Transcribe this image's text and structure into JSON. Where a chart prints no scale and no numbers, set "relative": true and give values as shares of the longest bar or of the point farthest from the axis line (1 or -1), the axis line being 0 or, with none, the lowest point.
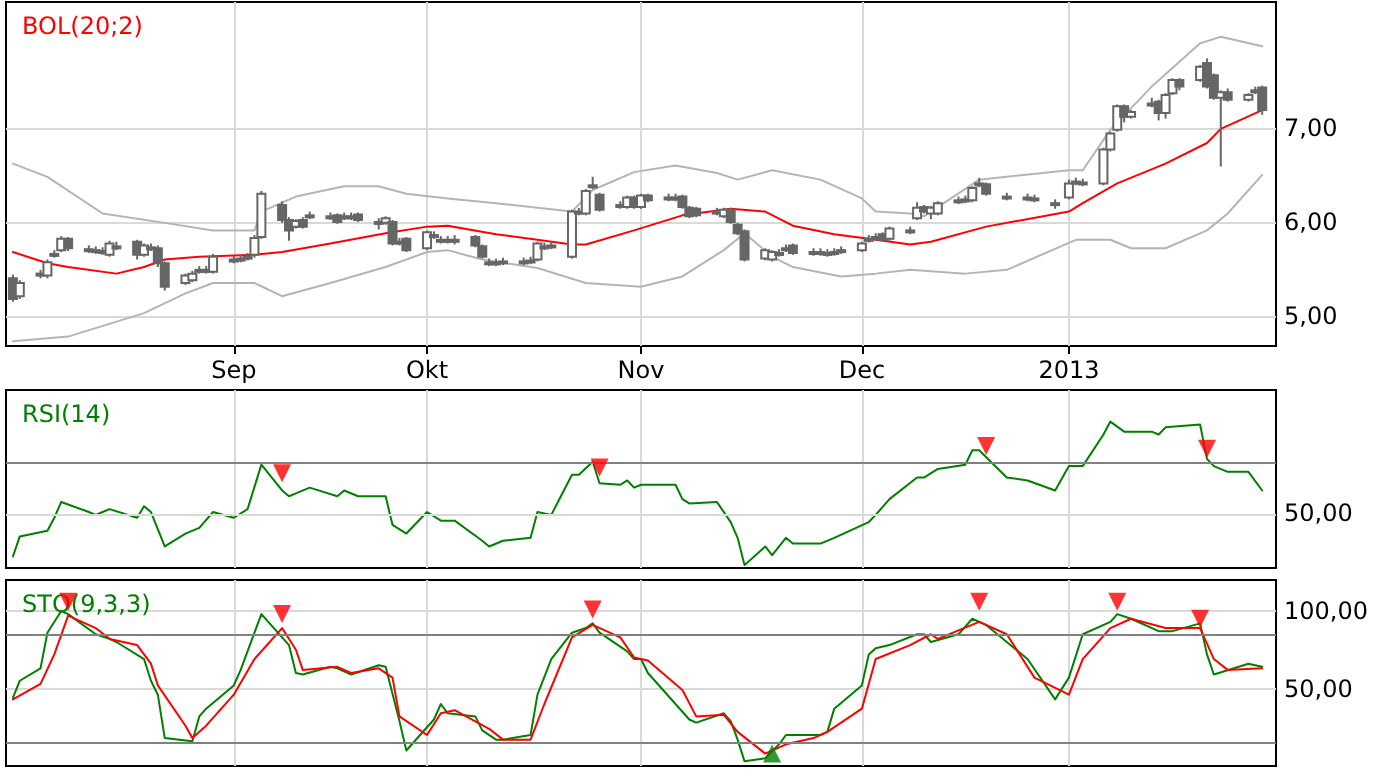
{
  "chart_data": [
    {
      "type": "candlestick",
      "title": "BOL(20;2)",
      "xlim": [
        "2012-08-01",
        "2013-02-01"
      ],
      "xticks": [
        {
          "value": "2012-09-03",
          "label": "Sep"
        },
        {
          "value": "2012-10-01",
          "label": "Okt"
        },
        {
          "value": "2012-11-01",
          "label": "Nov"
        },
        {
          "value": "2012-12-03",
          "label": "Dec"
        },
        {
          "value": "2013-01-02",
          "label": "2013"
        }
      ],
      "ylim": [
        4.68,
        8.34
      ],
      "yticks": [
        {
          "value": 5,
          "label": "5,00"
        },
        {
          "value": 6,
          "label": "6,00"
        },
        {
          "value": 7,
          "label": "7,00"
        }
      ],
      "grid": true,
      "series": [
        {
          "color": "#666666",
          "x": [
            "2012-08-02",
            "2012-08-03",
            "2012-08-06",
            "2012-08-07",
            "2012-08-08",
            "2012-08-09",
            "2012-08-10",
            "2012-08-13",
            "2012-08-14",
            "2012-08-15",
            "2012-08-16",
            "2012-08-17",
            "2012-08-20",
            "2012-08-21",
            "2012-08-22",
            "2012-08-23",
            "2012-08-24",
            "2012-08-27",
            "2012-08-28",
            "2012-08-29",
            "2012-08-30",
            "2012-08-31",
            "2012-09-03",
            "2012-09-04",
            "2012-09-05",
            "2012-09-06",
            "2012-09-07",
            "2012-09-10",
            "2012-09-11",
            "2012-09-12",
            "2012-09-13",
            "2012-09-14",
            "2012-09-17",
            "2012-09-18",
            "2012-09-19",
            "2012-09-20",
            "2012-09-21",
            "2012-09-24",
            "2012-09-25",
            "2012-09-26",
            "2012-09-27",
            "2012-09-28",
            "2012-10-01",
            "2012-10-02",
            "2012-10-03",
            "2012-10-04",
            "2012-10-05",
            "2012-10-08",
            "2012-10-09",
            "2012-10-10",
            "2012-10-11",
            "2012-10-12",
            "2012-10-15",
            "2012-10-16",
            "2012-10-17",
            "2012-10-18",
            "2012-10-19",
            "2012-10-22",
            "2012-10-23",
            "2012-10-24",
            "2012-10-25",
            "2012-10-26",
            "2012-10-29",
            "2012-10-30",
            "2012-10-31",
            "2012-11-01",
            "2012-11-02",
            "2012-11-05",
            "2012-11-06",
            "2012-11-07",
            "2012-11-08",
            "2012-11-09",
            "2012-11-12",
            "2012-11-13",
            "2012-11-14",
            "2012-11-15",
            "2012-11-16",
            "2012-11-19",
            "2012-11-20",
            "2012-11-21",
            "2012-11-22",
            "2012-11-23",
            "2012-11-26",
            "2012-11-27",
            "2012-11-28",
            "2012-11-29",
            "2012-11-30",
            "2012-12-03",
            "2012-12-04",
            "2012-12-05",
            "2012-12-06",
            "2012-12-07",
            "2012-12-10",
            "2012-12-11",
            "2012-12-12",
            "2012-12-13",
            "2012-12-14",
            "2012-12-17",
            "2012-12-18",
            "2012-12-19",
            "2012-12-20",
            "2012-12-21",
            "2012-12-24",
            "2012-12-27",
            "2012-12-28",
            "2012-12-31",
            "2013-01-02",
            "2013-01-03",
            "2013-01-04",
            "2013-01-07",
            "2013-01-08",
            "2013-01-09",
            "2013-01-10",
            "2013-01-11",
            "2013-01-14",
            "2013-01-15",
            "2013-01-16",
            "2013-01-17",
            "2013-01-18",
            "2013-01-21",
            "2013-01-22",
            "2013-01-23",
            "2013-01-24",
            "2013-01-25",
            "2013-01-28",
            "2013-01-29",
            "2013-01-30"
          ],
          "ohlc": [
            [
              5.4,
              5.44,
              5.15,
              5.18
            ],
            [
              5.21,
              5.38,
              5.18,
              5.35
            ],
            [
              5.44,
              5.49,
              5.4,
              5.45
            ],
            [
              5.43,
              5.6,
              5.4,
              5.57
            ],
            [
              5.65,
              5.7,
              5.62,
              5.66
            ],
            [
              5.7,
              5.85,
              5.68,
              5.82
            ],
            [
              5.82,
              5.84,
              5.69,
              5.72
            ],
            [
              5.71,
              5.75,
              5.67,
              5.71
            ],
            [
              5.7,
              5.74,
              5.66,
              5.7
            ],
            [
              5.69,
              5.73,
              5.65,
              5.69
            ],
            [
              5.65,
              5.8,
              5.63,
              5.77
            ],
            [
              5.74,
              5.79,
              5.7,
              5.74
            ],
            [
              5.79,
              5.81,
              5.6,
              5.65
            ],
            [
              5.65,
              5.77,
              5.63,
              5.75
            ],
            [
              5.73,
              5.77,
              5.69,
              5.73
            ],
            [
              5.72,
              5.75,
              5.52,
              5.56
            ],
            [
              5.56,
              5.58,
              5.27,
              5.31
            ],
            [
              5.35,
              5.45,
              5.33,
              5.43
            ],
            [
              5.38,
              5.48,
              5.36,
              5.45
            ],
            [
              5.49,
              5.53,
              5.45,
              5.49
            ],
            [
              5.49,
              5.53,
              5.45,
              5.49
            ],
            [
              5.47,
              5.66,
              5.45,
              5.63
            ],
            [
              5.6,
              5.64,
              5.56,
              5.6
            ],
            [
              5.61,
              5.65,
              5.57,
              5.61
            ],
            [
              5.63,
              5.67,
              5.59,
              5.63
            ],
            [
              5.65,
              5.86,
              5.62,
              5.83
            ],
            [
              5.84,
              6.33,
              5.82,
              6.3
            ],
            [
              6.18,
              6.22,
              5.99,
              6.02
            ],
            [
              6.02,
              6.05,
              5.8,
              5.91
            ],
            [
              5.95,
              6.03,
              5.93,
              6.01
            ],
            [
              6.02,
              6.05,
              5.93,
              5.95
            ],
            [
              6.07,
              6.11,
              6.03,
              6.07
            ],
            [
              6.06,
              6.1,
              6.02,
              6.06
            ],
            [
              6.07,
              6.09,
              5.98,
              6.0
            ],
            [
              6.06,
              6.1,
              6.02,
              6.06
            ],
            [
              6.06,
              6.1,
              6.02,
              6.06
            ],
            [
              6.08,
              6.1,
              6.0,
              6.02
            ],
            [
              6.0,
              6.04,
              5.92,
              6.0
            ],
            [
              5.99,
              6.06,
              5.97,
              6.04
            ],
            [
              6.0,
              6.02,
              5.75,
              5.77
            ],
            [
              5.79,
              5.83,
              5.75,
              5.79
            ],
            [
              5.82,
              5.84,
              5.68,
              5.7
            ],
            [
              5.72,
              5.91,
              5.7,
              5.89
            ],
            [
              5.86,
              5.9,
              5.82,
              5.86
            ],
            [
              5.81,
              5.85,
              5.77,
              5.81
            ],
            [
              5.81,
              5.85,
              5.77,
              5.81
            ],
            [
              5.8,
              5.86,
              5.76,
              5.81
            ],
            [
              5.84,
              5.86,
              5.73,
              5.75
            ],
            [
              5.74,
              5.76,
              5.61,
              5.63
            ],
            [
              5.57,
              5.61,
              5.53,
              5.57
            ],
            [
              5.57,
              5.61,
              5.53,
              5.57
            ],
            [
              5.58,
              5.62,
              5.54,
              5.58
            ],
            [
              5.58,
              5.62,
              5.54,
              5.58
            ],
            [
              5.59,
              5.63,
              5.55,
              5.59
            ],
            [
              5.6,
              5.79,
              5.58,
              5.77
            ],
            [
              5.74,
              5.78,
              5.7,
              5.74
            ],
            [
              5.75,
              5.79,
              5.71,
              5.75
            ],
            [
              5.63,
              6.13,
              5.61,
              6.11
            ],
            [
              6.11,
              6.15,
              6.07,
              6.11
            ],
            [
              6.09,
              6.35,
              6.07,
              6.33
            ],
            [
              6.39,
              6.48,
              6.35,
              6.39
            ],
            [
              6.29,
              6.31,
              6.11,
              6.13
            ],
            [
              6.18,
              6.22,
              6.14,
              6.18
            ],
            [
              6.16,
              6.28,
              6.14,
              6.26
            ],
            [
              6.26,
              6.28,
              6.14,
              6.16
            ],
            [
              6.16,
              6.3,
              6.14,
              6.28
            ],
            [
              6.28,
              6.3,
              6.21,
              6.23
            ],
            [
              6.26,
              6.3,
              6.22,
              6.26
            ],
            [
              6.26,
              6.3,
              6.22,
              6.26
            ],
            [
              6.27,
              6.29,
              6.14,
              6.16
            ],
            [
              6.15,
              6.17,
              6.04,
              6.06
            ],
            [
              6.14,
              6.16,
              6.05,
              6.07
            ],
            [
              6.11,
              6.15,
              6.07,
              6.11
            ],
            [
              6.06,
              6.15,
              6.04,
              6.13
            ],
            [
              6.13,
              6.15,
              5.98,
              6.0
            ],
            [
              5.97,
              5.99,
              5.86,
              5.88
            ],
            [
              5.9,
              5.92,
              5.58,
              5.6
            ],
            [
              5.61,
              5.72,
              5.59,
              5.7
            ],
            [
              5.6,
              5.7,
              5.58,
              5.68
            ],
            [
              5.67,
              5.71,
              5.63,
              5.67
            ],
            [
              5.72,
              5.76,
              5.68,
              5.72
            ],
            [
              5.75,
              5.77,
              5.65,
              5.67
            ],
            [
              5.68,
              5.72,
              5.64,
              5.68
            ],
            [
              5.68,
              5.72,
              5.64,
              5.68
            ],
            [
              5.67,
              5.71,
              5.63,
              5.67
            ],
            [
              5.68,
              5.72,
              5.64,
              5.68
            ],
            [
              5.7,
              5.74,
              5.66,
              5.7
            ],
            [
              5.7,
              5.79,
              5.68,
              5.77
            ],
            [
              5.82,
              5.86,
              5.78,
              5.82
            ],
            [
              5.84,
              5.88,
              5.8,
              5.84
            ],
            [
              5.87,
              5.89,
              5.79,
              5.81
            ],
            [
              5.82,
              5.95,
              5.8,
              5.93
            ],
            [
              5.91,
              5.95,
              5.87,
              5.91
            ],
            [
              6.04,
              6.21,
              6.02,
              6.15
            ],
            [
              6.16,
              6.18,
              6.09,
              6.11
            ],
            [
              6.09,
              6.17,
              6.03,
              6.15
            ],
            [
              6.09,
              6.22,
              6.07,
              6.2
            ],
            [
              6.23,
              6.27,
              6.19,
              6.23
            ],
            [
              6.24,
              6.28,
              6.2,
              6.24
            ],
            [
              6.23,
              6.38,
              6.21,
              6.36
            ],
            [
              6.41,
              6.47,
              6.37,
              6.41
            ],
            [
              6.4,
              6.42,
              6.28,
              6.3
            ],
            [
              6.27,
              6.31,
              6.23,
              6.27
            ],
            [
              6.26,
              6.3,
              6.22,
              6.26
            ],
            [
              6.25,
              6.29,
              6.21,
              6.25
            ],
            [
              6.2,
              6.24,
              6.14,
              6.2
            ],
            [
              6.26,
              6.45,
              6.24,
              6.41
            ],
            [
              6.43,
              6.47,
              6.39,
              6.43
            ],
            [
              6.42,
              6.46,
              6.38,
              6.42
            ],
            [
              6.41,
              6.79,
              6.39,
              6.77
            ],
            [
              6.77,
              6.96,
              6.75,
              6.94
            ],
            [
              6.98,
              7.25,
              6.96,
              7.23
            ],
            [
              7.23,
              7.25,
              7.06,
              7.12
            ],
            [
              7.12,
              7.19,
              7.1,
              7.17
            ],
            [
              7.26,
              7.32,
              7.22,
              7.26
            ],
            [
              7.28,
              7.3,
              7.08,
              7.16
            ],
            [
              7.16,
              7.37,
              7.1,
              7.35
            ],
            [
              7.37,
              7.53,
              7.35,
              7.51
            ],
            [
              7.51,
              7.53,
              7.4,
              7.44
            ],
            [
              7.51,
              7.67,
              7.49,
              7.65
            ],
            [
              7.69,
              7.74,
              7.42,
              7.44
            ],
            [
              7.56,
              7.58,
              7.3,
              7.32
            ],
            [
              7.32,
              7.4,
              6.59,
              7.38
            ],
            [
              7.38,
              7.42,
              7.28,
              7.3
            ],
            [
              7.3,
              7.37,
              7.28,
              7.35
            ],
            [
              7.4,
              7.44,
              7.36,
              7.4
            ],
            [
              7.43,
              7.45,
              7.14,
              7.19
            ]
          ]
        },
        {
          "type": "line",
          "color": "#b4b4b4",
          "x": [
            "2012-08-02",
            "2012-08-07",
            "2012-08-15",
            "2012-08-24",
            "2012-08-31",
            "2012-09-06",
            "2012-09-07",
            "2012-09-12",
            "2012-09-19",
            "2012-09-24",
            "2012-09-28",
            "2012-10-04",
            "2012-10-11",
            "2012-10-22",
            "2012-10-25",
            "2012-10-31",
            "2012-11-06",
            "2012-11-12",
            "2012-11-15",
            "2012-11-20",
            "2012-11-27",
            "2012-12-03",
            "2012-12-05",
            "2012-12-10",
            "2012-12-12",
            "2012-12-20",
            "2013-01-02",
            "2013-01-04",
            "2013-01-08",
            "2013-01-14",
            "2013-01-21",
            "2013-01-24",
            "2013-01-30"
          ],
          "values": [
            6.62,
            6.48,
            6.09,
            5.99,
            5.91,
            5.91,
            6.11,
            6.27,
            6.38,
            6.38,
            6.3,
            6.25,
            6.2,
            6.11,
            6.34,
            6.53,
            6.6,
            6.52,
            6.45,
            6.55,
            6.45,
            6.25,
            6.11,
            6.09,
            6.06,
            6.45,
            6.55,
            6.55,
            6.98,
            7.44,
            7.9,
            7.97,
            7.87
          ]
        },
        {
          "type": "line",
          "color": "#ff0000",
          "x": [
            "2012-08-02",
            "2012-08-07",
            "2012-08-10",
            "2012-08-17",
            "2012-08-21",
            "2012-08-24",
            "2012-08-29",
            "2012-09-06",
            "2012-09-10",
            "2012-09-17",
            "2012-09-25",
            "2012-10-01",
            "2012-10-04",
            "2012-10-11",
            "2012-10-22",
            "2012-10-24",
            "2012-10-31",
            "2012-11-07",
            "2012-11-14",
            "2012-11-19",
            "2012-11-23",
            "2012-11-29",
            "2012-12-04",
            "2012-12-10",
            "2012-12-13",
            "2012-12-21",
            "2013-01-02",
            "2013-01-04",
            "2013-01-09",
            "2013-01-16",
            "2013-01-22",
            "2013-01-24",
            "2013-01-30"
          ],
          "values": [
            5.68,
            5.56,
            5.52,
            5.45,
            5.52,
            5.6,
            5.63,
            5.65,
            5.68,
            5.77,
            5.88,
            5.95,
            5.96,
            5.87,
            5.76,
            5.76,
            5.91,
            6.07,
            6.14,
            6.11,
            5.96,
            5.87,
            5.82,
            5.76,
            5.79,
            5.95,
            6.11,
            6.2,
            6.41,
            6.62,
            6.84,
            6.99,
            7.19
          ]
        },
        {
          "type": "line",
          "color": "#b4b4b4",
          "x": [
            "2012-08-02",
            "2012-08-10",
            "2012-08-21",
            "2012-08-27",
            "2012-08-31",
            "2012-09-06",
            "2012-09-10",
            "2012-09-17",
            "2012-09-25",
            "2012-10-01",
            "2012-10-04",
            "2012-10-09",
            "2012-10-17",
            "2012-10-24",
            "2012-11-01",
            "2012-11-07",
            "2012-11-13",
            "2012-11-16",
            "2012-11-20",
            "2012-11-23",
            "2012-11-30",
            "2012-12-05",
            "2012-12-10",
            "2012-12-18",
            "2012-12-24",
            "2013-01-03",
            "2013-01-08",
            "2013-01-11",
            "2013-01-16",
            "2013-01-22",
            "2013-01-25",
            "2013-01-30"
          ],
          "values": [
            4.73,
            4.78,
            5.03,
            5.24,
            5.35,
            5.35,
            5.21,
            5.35,
            5.52,
            5.68,
            5.7,
            5.6,
            5.51,
            5.35,
            5.31,
            5.42,
            5.7,
            5.88,
            5.63,
            5.52,
            5.42,
            5.45,
            5.49,
            5.45,
            5.49,
            5.81,
            5.81,
            5.72,
            5.72,
            5.91,
            6.09,
            6.5
          ]
        }
      ]
    },
    {
      "type": "line",
      "title": "RSI(14)",
      "relative": true,
      "xlim": [
        "2012-08-01",
        "2013-02-01"
      ],
      "xticks": [
        {
          "value": "2012-09-03",
          "label": null
        },
        {
          "value": "2012-10-01",
          "label": null
        },
        {
          "value": "2012-11-01",
          "label": null
        },
        {
          "value": "2012-12-03",
          "label": null
        },
        {
          "value": "2013-01-02",
          "label": null
        }
      ],
      "grid": "x",
      "tick_labels": "y",
      "ref_lines": [
        {
          "axis": "y",
          "value": 0.72,
          "color": "#808080"
        },
        {
          "axis": "y",
          "value": 0.35,
          "color": "#d9d9d9"
        }
      ],
      "annotations": [
        "50,00"
      ],
      "series": [
        {
          "color": "#008000",
          "x": [
            "2012-08-02",
            "2012-08-03",
            "2012-08-07",
            "2012-08-08",
            "2012-08-09",
            "2012-08-13",
            "2012-08-14",
            "2012-08-15",
            "2012-08-16",
            "2012-08-20",
            "2012-08-21",
            "2012-08-22",
            "2012-08-24",
            "2012-08-27",
            "2012-08-29",
            "2012-08-31",
            "2012-09-03",
            "2012-09-05",
            "2012-09-07",
            "2012-09-10",
            "2012-09-11",
            "2012-09-12",
            "2012-09-14",
            "2012-09-18",
            "2012-09-19",
            "2012-09-21",
            "2012-09-25",
            "2012-09-26",
            "2012-09-28",
            "2012-10-01",
            "2012-10-03",
            "2012-10-05",
            "2012-10-09",
            "2012-10-10",
            "2012-10-12",
            "2012-10-16",
            "2012-10-17",
            "2012-10-19",
            "2012-10-22",
            "2012-10-23",
            "2012-10-25",
            "2012-10-26",
            "2012-10-29",
            "2012-10-30",
            "2012-10-31",
            "2012-11-01",
            "2012-11-06",
            "2012-11-07",
            "2012-11-08",
            "2012-11-12",
            "2012-11-14",
            "2012-11-15",
            "2012-11-16",
            "2012-11-19",
            "2012-11-20",
            "2012-11-22",
            "2012-11-23",
            "2012-11-27",
            "2012-11-29",
            "2012-12-04",
            "2012-12-05",
            "2012-12-07",
            "2012-12-11",
            "2012-12-12",
            "2012-12-14",
            "2012-12-18",
            "2012-12-19",
            "2012-12-20",
            "2012-12-24",
            "2012-12-27",
            "2012-12-31",
            "2013-01-02",
            "2013-01-04",
            "2013-01-07",
            "2013-01-08",
            "2013-01-10",
            "2013-01-14",
            "2013-01-15",
            "2013-01-16",
            "2013-01-21",
            "2013-01-22",
            "2013-01-23",
            "2013-01-25",
            "2013-01-28",
            "2013-01-30"
          ],
          "values": [
            0.06,
            0.2,
            0.24,
            0.33,
            0.44,
            0.37,
            0.35,
            0.37,
            0.39,
            0.33,
            0.41,
            0.37,
            0.13,
            0.22,
            0.26,
            0.37,
            0.33,
            0.39,
            0.7,
            0.52,
            0.48,
            0.5,
            0.54,
            0.48,
            0.52,
            0.48,
            0.48,
            0.28,
            0.22,
            0.37,
            0.31,
            0.31,
            0.17,
            0.13,
            0.17,
            0.19,
            0.37,
            0.35,
            0.63,
            0.63,
            0.72,
            0.57,
            0.56,
            0.59,
            0.54,
            0.56,
            0.56,
            0.46,
            0.43,
            0.44,
            0.3,
            0.19,
            0,
            0.13,
            0.07,
            0.19,
            0.15,
            0.15,
            0.19,
            0.3,
            0.35,
            0.46,
            0.61,
            0.61,
            0.67,
            0.7,
            0.8,
            0.8,
            0.61,
            0.59,
            0.52,
            0.69,
            0.69,
            0.91,
            1,
            0.93,
            0.93,
            0.91,
            0.96,
            0.98,
            0.74,
            0.69,
            0.65,
            0.65,
            0.52
          ]
        },
        {
          "type": "scatter",
          "marker": "triangle",
          "color": "#ff0000",
          "x": [
            "2012-09-10",
            "2012-10-26",
            "2012-12-21",
            "2013-01-22"
          ],
          "values": [
            0.64,
            0.68,
            0.83,
            0.81
          ]
        }
      ]
    },
    {
      "type": "line",
      "title": "STO(9,3,3)",
      "xlim": [
        "2012-08-01",
        "2013-02-01"
      ],
      "xticks": [
        {
          "value": "2012-09-03",
          "label": null
        },
        {
          "value": "2012-10-01",
          "label": null
        },
        {
          "value": "2012-11-01",
          "label": null
        },
        {
          "value": "2012-12-03",
          "label": null
        },
        {
          "value": "2013-01-02",
          "label": null
        }
      ],
      "ylim": [
        0,
        120
      ],
      "yticks": [
        {
          "value": 50,
          "label": "50,00"
        },
        {
          "value": 100,
          "label": "100,00"
        }
      ],
      "grid": true,
      "tick_labels": "y",
      "ref_lines": [
        {
          "axis": "y",
          "value": 85,
          "color": "#808080"
        },
        {
          "axis": "y",
          "value": 15,
          "color": "#808080"
        }
      ],
      "series": [
        {
          "color": "#008000",
          "x": [
            "2012-08-02",
            "2012-08-03",
            "2012-08-06",
            "2012-08-07",
            "2012-08-09",
            "2012-08-10",
            "2012-08-14",
            "2012-08-16",
            "2012-08-17",
            "2012-08-21",
            "2012-08-22",
            "2012-08-23",
            "2012-08-24",
            "2012-08-28",
            "2012-08-29",
            "2012-08-30",
            "2012-09-03",
            "2012-09-04",
            "2012-09-06",
            "2012-09-07",
            "2012-09-11",
            "2012-09-12",
            "2012-09-13",
            "2012-09-17",
            "2012-09-18",
            "2012-09-20",
            "2012-09-24",
            "2012-09-25",
            "2012-09-27",
            "2012-09-28",
            "2012-10-02",
            "2012-10-03",
            "2012-10-04",
            "2012-10-08",
            "2012-10-09",
            "2012-10-11",
            "2012-10-12",
            "2012-10-16",
            "2012-10-17",
            "2012-10-19",
            "2012-10-22",
            "2012-10-24",
            "2012-10-25",
            "2012-10-26",
            "2012-10-30",
            "2012-10-31",
            "2012-11-01",
            "2012-11-02",
            "2012-11-06",
            "2012-11-08",
            "2012-11-09",
            "2012-11-13",
            "2012-11-14",
            "2012-11-15",
            "2012-11-16",
            "2012-11-19",
            "2012-11-21",
            "2012-11-22",
            "2012-11-27",
            "2012-11-28",
            "2012-11-29",
            "2012-12-03",
            "2012-12-04",
            "2012-12-05",
            "2012-12-07",
            "2012-12-11",
            "2012-12-12",
            "2012-12-13",
            "2012-12-17",
            "2012-12-19",
            "2012-12-21",
            "2012-12-27",
            "2012-12-31",
            "2013-01-02",
            "2013-01-04",
            "2013-01-08",
            "2013-01-09",
            "2013-01-11",
            "2013-01-15",
            "2013-01-17",
            "2013-01-21",
            "2013-01-22",
            "2013-01-23",
            "2013-01-28",
            "2013-01-30"
          ],
          "values": [
            44,
            55,
            63,
            86,
            100,
            98,
            85,
            82,
            80,
            69,
            55,
            46,
            18,
            16,
            32,
            37,
            52,
            62,
            86,
            98,
            78,
            60,
            59,
            64,
            63,
            59,
            65,
            64,
            29,
            10,
            30,
            40,
            34,
            32,
            23,
            17,
            17,
            20,
            46,
            69,
            86,
            89,
            92,
            86,
            74,
            69,
            69,
            60,
            40,
            30,
            28,
            34,
            29,
            17,
            3,
            5,
            14,
            20,
            20,
            22,
            37,
            52,
            72,
            76,
            78,
            85,
            85,
            80,
            85,
            95,
            91,
            69,
            43,
            57,
            85,
            93,
            98,
            95,
            87,
            87,
            92,
            72,
            59,
            66,
            64
          ]
        },
        {
          "type": "line",
          "color": "#ff0000",
          "x": [
            "2012-08-02",
            "2012-08-06",
            "2012-08-08",
            "2012-08-10",
            "2012-08-14",
            "2012-08-16",
            "2012-08-20",
            "2012-08-22",
            "2012-08-23",
            "2012-08-27",
            "2012-08-28",
            "2012-08-30",
            "2012-09-03",
            "2012-09-06",
            "2012-09-10",
            "2012-09-12",
            "2012-09-13",
            "2012-09-18",
            "2012-09-20",
            "2012-09-24",
            "2012-09-26",
            "2012-09-27",
            "2012-10-01",
            "2012-10-03",
            "2012-10-05",
            "2012-10-10",
            "2012-10-12",
            "2012-10-16",
            "2012-10-18",
            "2012-10-22",
            "2012-10-25",
            "2012-10-29",
            "2012-10-31",
            "2012-11-02",
            "2012-11-07",
            "2012-11-09",
            "2012-11-13",
            "2012-11-15",
            "2012-11-19",
            "2012-11-22",
            "2012-11-26",
            "2012-11-28",
            "2012-12-03",
            "2012-12-05",
            "2012-12-10",
            "2012-12-13",
            "2012-12-14",
            "2012-12-20",
            "2012-12-24",
            "2012-12-28",
            "2013-01-02",
            "2013-01-04",
            "2013-01-08",
            "2013-01-11",
            "2013-01-16",
            "2013-01-21",
            "2013-01-23",
            "2013-01-25",
            "2013-01-30"
          ],
          "values": [
            43,
            53,
            72,
            97,
            89,
            82,
            78,
            66,
            52,
            26,
            18,
            26,
            46,
            69,
            89,
            75,
            62,
            64,
            60,
            63,
            57,
            32,
            20,
            34,
            36,
            24,
            17,
            17,
            40,
            83,
            91,
            83,
            70,
            68,
            49,
            32,
            33,
            22,
            8,
            14,
            18,
            22,
            37,
            69,
            78,
            85,
            82,
            93,
            85,
            57,
            46,
            69,
            89,
            95,
            89,
            89,
            69,
            62,
            63
          ]
        },
        {
          "type": "scatter",
          "marker": "triangle",
          "color": "#ff0000",
          "x": [
            "2012-08-10",
            "2012-09-10",
            "2012-10-25",
            "2012-12-20",
            "2013-01-09",
            "2013-01-21"
          ],
          "values": [
            106,
            98,
            101,
            106,
            106,
            95
          ]
        },
        {
          "type": "scatter",
          "marker": "triangle",
          "color": "#008000",
          "x": [
            "2012-11-20"
          ],
          "values": [
            8
          ]
        }
      ]
    }
  ]
}
